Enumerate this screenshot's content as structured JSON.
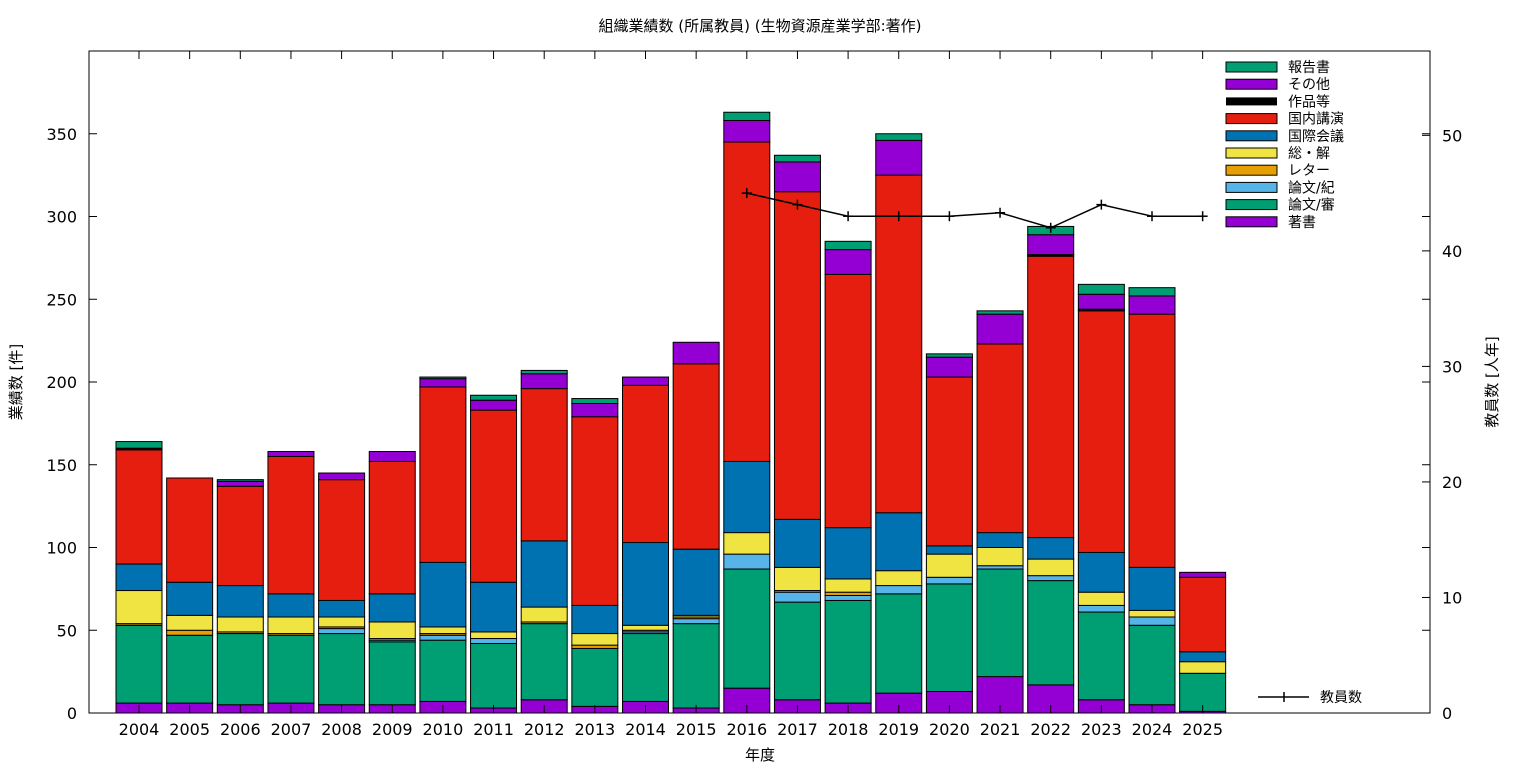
{
  "chart_data": {
    "type": "bar",
    "title": "組織業績数 (所属教員) (生物資源産業学部:著作)",
    "xlabel": "年度",
    "ylabel": "業績数 [件]",
    "y2label": "教員数 [人年]",
    "ylim": [
      0,
      400
    ],
    "y2lim": [
      0,
      57.3
    ],
    "yticks": [
      0,
      50,
      100,
      150,
      200,
      250,
      300,
      350
    ],
    "y2ticks": [
      0,
      10,
      20,
      30,
      40,
      50
    ],
    "grid": false,
    "legend_position": "top-right",
    "categories": [
      "2004",
      "2005",
      "2006",
      "2007",
      "2008",
      "2009",
      "2010",
      "2011",
      "2012",
      "2013",
      "2014",
      "2015",
      "2016",
      "2017",
      "2018",
      "2019",
      "2020",
      "2021",
      "2022",
      "2023",
      "2024",
      "2025"
    ],
    "series": [
      {
        "name": "著書",
        "color": "#9400d3",
        "values": [
          6,
          6,
          5,
          6,
          5,
          5,
          7,
          3,
          8,
          4,
          7,
          3,
          15,
          8,
          6,
          12,
          13,
          22,
          17,
          8,
          5,
          1
        ]
      },
      {
        "name": "論文/審",
        "color": "#009e73",
        "values": [
          47,
          41,
          43,
          41,
          43,
          38,
          37,
          39,
          46,
          35,
          41,
          51,
          72,
          59,
          62,
          60,
          65,
          65,
          63,
          53,
          48,
          23
        ]
      },
      {
        "name": "論文/紀",
        "color": "#56b4e9",
        "values": [
          0,
          0,
          0,
          0,
          3,
          1,
          3,
          3,
          0,
          0,
          1,
          3,
          9,
          6,
          3,
          5,
          4,
          2,
          3,
          4,
          5,
          0
        ]
      },
      {
        "name": "レター",
        "color": "#e69f00",
        "values": [
          1,
          3,
          1,
          1,
          1,
          1,
          1,
          0,
          1,
          2,
          1,
          1,
          0,
          1,
          2,
          0,
          0,
          0,
          0,
          0,
          0,
          0
        ]
      },
      {
        "name": "総・解",
        "color": "#f0e442",
        "values": [
          20,
          9,
          9,
          10,
          6,
          10,
          4,
          4,
          9,
          7,
          3,
          1,
          13,
          14,
          8,
          9,
          14,
          11,
          10,
          8,
          4,
          7
        ]
      },
      {
        "name": "国際会議",
        "color": "#0072b2",
        "values": [
          16,
          20,
          19,
          14,
          10,
          17,
          39,
          30,
          40,
          17,
          50,
          40,
          43,
          29,
          31,
          35,
          5,
          9,
          13,
          24,
          26,
          6
        ]
      },
      {
        "name": "国内講演",
        "color": "#e51e10",
        "values": [
          69,
          63,
          60,
          83,
          73,
          80,
          106,
          104,
          92,
          114,
          95,
          112,
          193,
          198,
          153,
          204,
          102,
          114,
          170,
          146,
          153,
          45
        ]
      },
      {
        "name": "作品等",
        "color": "#000000",
        "values": [
          1,
          0,
          0,
          0,
          0,
          0,
          0,
          0,
          0,
          0,
          0,
          0,
          0,
          0,
          0,
          0,
          0,
          0,
          1,
          1,
          0,
          0
        ]
      },
      {
        "name": "その他",
        "color": "#9400d3",
        "values": [
          0,
          0,
          3,
          3,
          4,
          6,
          5,
          6,
          9,
          8,
          5,
          13,
          13,
          18,
          15,
          21,
          12,
          18,
          12,
          9,
          11,
          3
        ]
      },
      {
        "name": "報告書",
        "color": "#009e73",
        "values": [
          4,
          0,
          1,
          0,
          0,
          0,
          1,
          3,
          2,
          3,
          0,
          0,
          5,
          4,
          5,
          4,
          2,
          2,
          5,
          6,
          5,
          0
        ]
      }
    ],
    "line": {
      "name": "教員数",
      "color": "#000000",
      "x": [
        "2016",
        "2017",
        "2018",
        "2019",
        "2020",
        "2021",
        "2022",
        "2023",
        "2024",
        "2025"
      ],
      "values": [
        45,
        44,
        43,
        43,
        43,
        43.3,
        42,
        44,
        43,
        43
      ]
    }
  }
}
